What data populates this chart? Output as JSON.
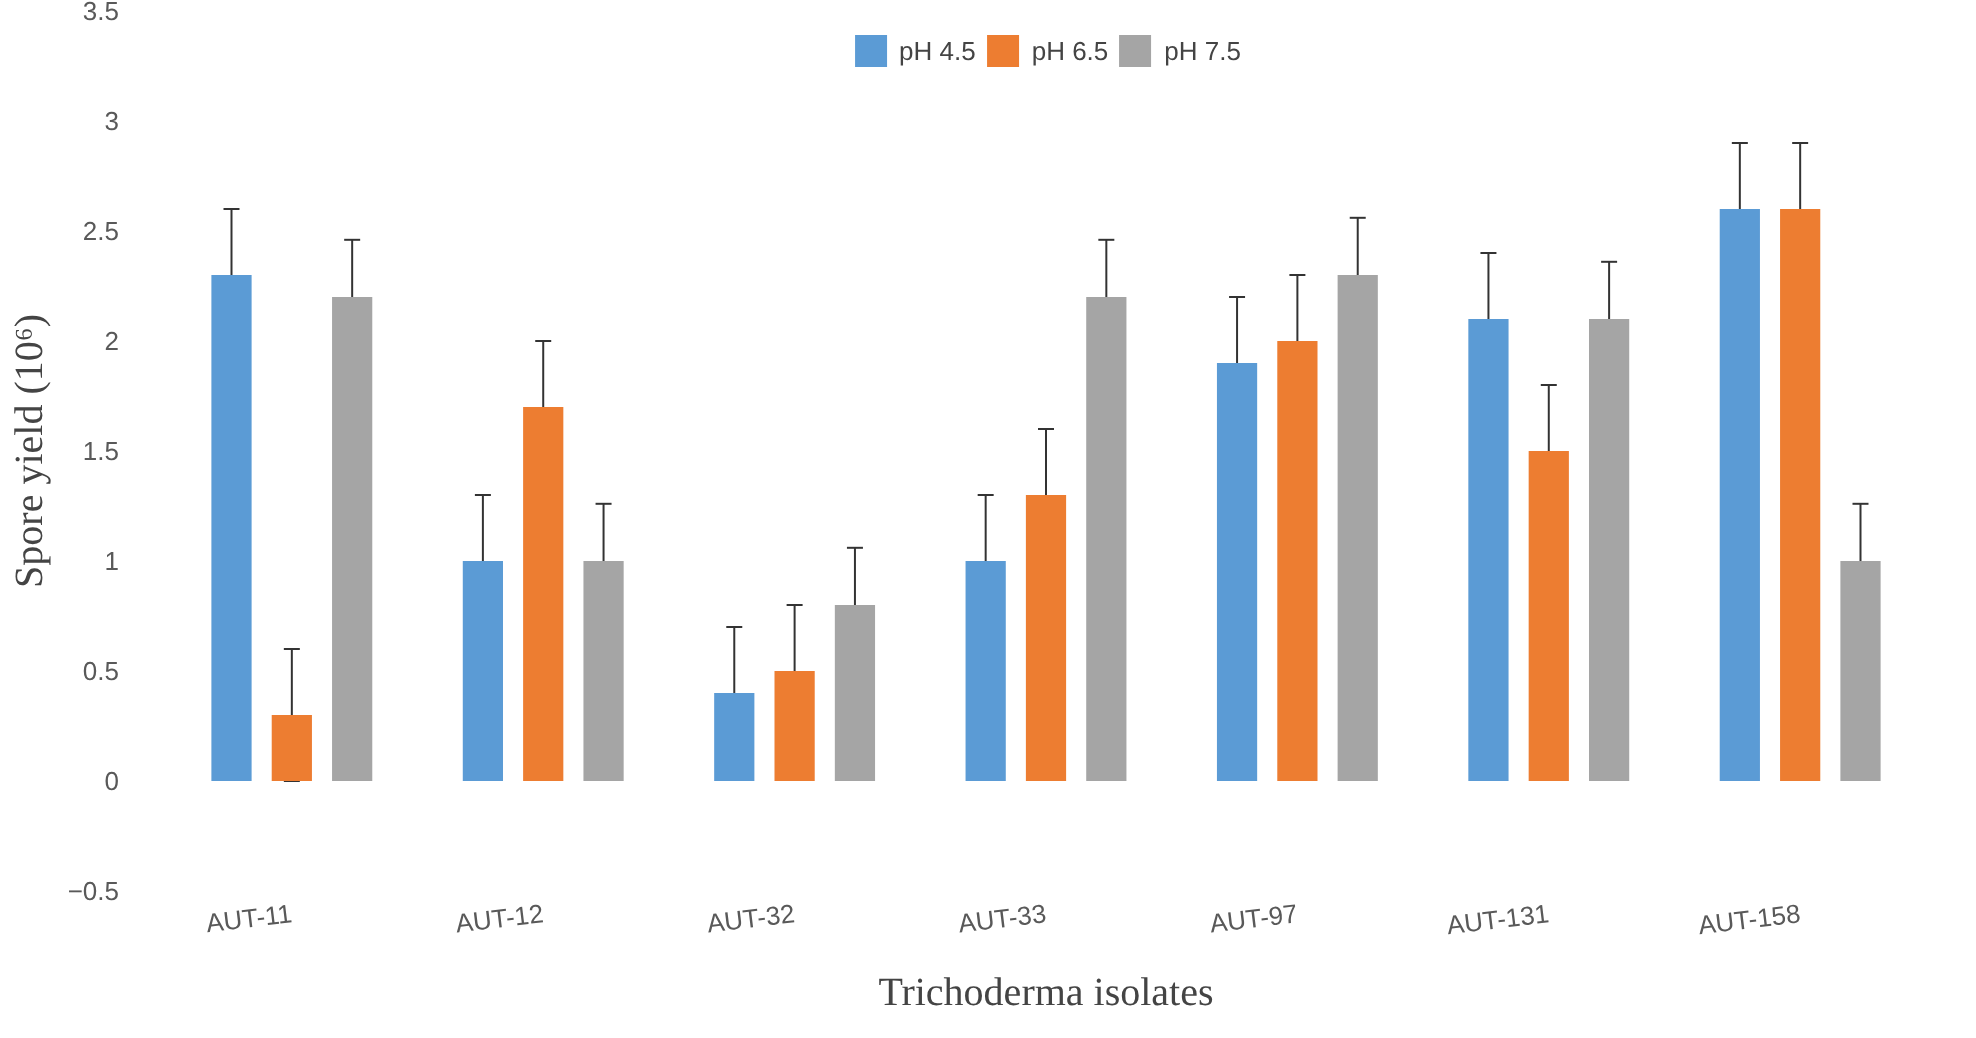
{
  "chart_data": {
    "type": "bar",
    "xlabel": "Trichoderma isolates",
    "ylabel": "Spore yield (10⁶)",
    "categories": [
      "AUT-11",
      "AUT-12",
      "AUT-32",
      "AUT-33",
      "AUT-97",
      "AUT-131",
      "AUT-158"
    ],
    "series": [
      {
        "name": "pH 4.5",
        "color": "#5b9bd5",
        "values": [
          2.3,
          1.0,
          0.4,
          1.0,
          1.9,
          2.1,
          2.6
        ],
        "errors": [
          0.3,
          0.3,
          0.3,
          0.3,
          0.3,
          0.3,
          0.3
        ]
      },
      {
        "name": "pH 6.5",
        "color": "#ed7d31",
        "values": [
          0.3,
          1.7,
          0.5,
          1.3,
          2.0,
          1.5,
          2.6
        ],
        "errors": [
          0.3,
          0.3,
          0.3,
          0.3,
          0.3,
          0.3,
          0.3
        ]
      },
      {
        "name": "pH 7.5",
        "color": "#a5a5a5",
        "values": [
          2.2,
          1.0,
          0.8,
          2.2,
          2.3,
          2.1,
          1.0
        ],
        "errors": [
          0.26,
          0.26,
          0.26,
          0.26,
          0.26,
          0.26,
          0.26
        ]
      }
    ],
    "ylim": [
      -0.5,
      3.5
    ],
    "yticks": [
      -0.5,
      0,
      0.5,
      1,
      1.5,
      2,
      2.5,
      3,
      3.5
    ],
    "grid": false,
    "legend": "top"
  }
}
